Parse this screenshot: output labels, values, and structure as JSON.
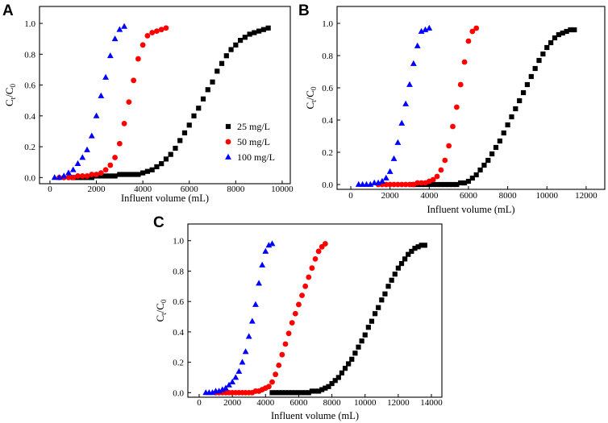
{
  "chart_data": [
    {
      "panel": "A",
      "type": "scatter",
      "xlabel": "Influent volume (mL)",
      "ylabel_parts": [
        {
          "t": "C"
        },
        {
          "t": "t",
          "sub": true
        },
        {
          "t": "/C"
        },
        {
          "t": "0",
          "sub": true
        }
      ],
      "xlim": [
        -450,
        10350
      ],
      "ylim": [
        -0.04,
        1.11
      ],
      "xticks": [
        0,
        2000,
        4000,
        6000,
        8000,
        10000
      ],
      "xtick_labels": [
        "0",
        "2000",
        "4000",
        "6000",
        "8000",
        "10000"
      ],
      "yticks": [
        0,
        0.2,
        0.4,
        0.6,
        0.8,
        1.0
      ],
      "ytick_labels": [
        "0.0",
        "0.2",
        "0.4",
        "0.6",
        "0.8",
        "1.0"
      ],
      "legend": {
        "show": true,
        "position": "center-right"
      },
      "series": [
        {
          "name": "25 mg/L",
          "marker": "square",
          "color": "#000000",
          "x": [
            1000,
            1200,
            1400,
            1600,
            1800,
            2000,
            2200,
            2400,
            2600,
            2800,
            3000,
            3200,
            3400,
            3600,
            3800,
            4000,
            4200,
            4400,
            4600,
            4800,
            5000,
            5200,
            5400,
            5600,
            5800,
            6000,
            6200,
            6400,
            6600,
            6800,
            7000,
            7200,
            7400,
            7600,
            7800,
            8000,
            8200,
            8400,
            8600,
            8800,
            9000,
            9200,
            9400
          ],
          "y": [
            0.0,
            0.0,
            0.0,
            0.0,
            0.0,
            0.01,
            0.01,
            0.01,
            0.01,
            0.01,
            0.02,
            0.02,
            0.02,
            0.02,
            0.02,
            0.03,
            0.04,
            0.05,
            0.07,
            0.09,
            0.12,
            0.15,
            0.19,
            0.24,
            0.29,
            0.34,
            0.4,
            0.45,
            0.51,
            0.57,
            0.62,
            0.69,
            0.74,
            0.79,
            0.83,
            0.86,
            0.89,
            0.91,
            0.93,
            0.94,
            0.95,
            0.96,
            0.97
          ]
        },
        {
          "name": "50 mg/L",
          "marker": "circle",
          "color": "#ff0000",
          "x": [
            400,
            600,
            800,
            1000,
            1200,
            1400,
            1600,
            1800,
            2000,
            2200,
            2400,
            2600,
            2800,
            3000,
            3200,
            3400,
            3600,
            3800,
            4000,
            4200,
            4400,
            4600,
            4800,
            5000
          ],
          "y": [
            0.0,
            0.0,
            0.0,
            0.0,
            0.01,
            0.01,
            0.01,
            0.02,
            0.02,
            0.03,
            0.05,
            0.08,
            0.13,
            0.22,
            0.35,
            0.49,
            0.63,
            0.77,
            0.86,
            0.92,
            0.94,
            0.95,
            0.96,
            0.97
          ]
        },
        {
          "name": "100 mg/L",
          "marker": "triangle",
          "color": "#0000ff",
          "x": [
            200,
            400,
            600,
            800,
            1000,
            1200,
            1400,
            1600,
            1800,
            2000,
            2200,
            2400,
            2600,
            2800,
            3000,
            3200
          ],
          "y": [
            0.0,
            0.0,
            0.01,
            0.03,
            0.05,
            0.09,
            0.13,
            0.18,
            0.27,
            0.4,
            0.53,
            0.65,
            0.79,
            0.9,
            0.96,
            0.98
          ]
        }
      ]
    },
    {
      "panel": "B",
      "type": "scatter",
      "xlabel": "Influent volume (mL)",
      "ylabel_parts": [
        {
          "t": "C"
        },
        {
          "t": "t",
          "sub": true
        },
        {
          "t": "/C"
        },
        {
          "t": "0",
          "sub": true
        }
      ],
      "xlim": [
        -700,
        12950
      ],
      "ylim": [
        -0.03,
        1.105
      ],
      "xticks": [
        0,
        2000,
        4000,
        6000,
        8000,
        10000,
        12000
      ],
      "xtick_labels": [
        "0",
        "2000",
        "4000",
        "6000",
        "8000",
        "10000",
        "12000"
      ],
      "yticks": [
        0,
        0.2,
        0.4,
        0.6,
        0.8,
        1.0
      ],
      "ytick_labels": [
        "0.0",
        "0.2",
        "0.4",
        "0.6",
        "0.8",
        "1.0"
      ],
      "legend": {
        "show": false
      },
      "series": [
        {
          "marker": "square",
          "color": "#000000",
          "x": [
            3200,
            3400,
            3600,
            3800,
            4000,
            4200,
            4400,
            4600,
            4800,
            5000,
            5200,
            5400,
            5600,
            5800,
            6000,
            6200,
            6400,
            6600,
            6800,
            7000,
            7200,
            7400,
            7600,
            7800,
            8000,
            8200,
            8400,
            8600,
            8800,
            9000,
            9200,
            9400,
            9600,
            9800,
            10000,
            10200,
            10400,
            10600,
            10800,
            11000,
            11200,
            11400
          ],
          "y": [
            0.0,
            0.0,
            0.0,
            0.0,
            0.0,
            0.0,
            0.0,
            0.0,
            0.0,
            0.0,
            0.0,
            0.0,
            0.01,
            0.01,
            0.02,
            0.04,
            0.06,
            0.09,
            0.12,
            0.15,
            0.19,
            0.23,
            0.27,
            0.32,
            0.37,
            0.42,
            0.47,
            0.52,
            0.57,
            0.62,
            0.67,
            0.72,
            0.77,
            0.81,
            0.85,
            0.88,
            0.91,
            0.93,
            0.94,
            0.95,
            0.96,
            0.96
          ]
        },
        {
          "marker": "circle",
          "color": "#ff0000",
          "x": [
            1400,
            1600,
            1800,
            2000,
            2200,
            2400,
            2600,
            2800,
            3000,
            3200,
            3400,
            3600,
            3800,
            4000,
            4200,
            4400,
            4600,
            4800,
            5000,
            5200,
            5400,
            5600,
            5800,
            6000,
            6200,
            6400
          ],
          "y": [
            0.0,
            0.0,
            0.0,
            0.0,
            0.0,
            0.0,
            0.0,
            0.0,
            0.0,
            0.0,
            0.01,
            0.01,
            0.01,
            0.02,
            0.03,
            0.05,
            0.09,
            0.15,
            0.24,
            0.36,
            0.48,
            0.62,
            0.76,
            0.89,
            0.95,
            0.97
          ]
        },
        {
          "marker": "triangle",
          "color": "#0000ff",
          "x": [
            400,
            600,
            800,
            1000,
            1200,
            1400,
            1600,
            1800,
            2000,
            2200,
            2400,
            2600,
            2800,
            3000,
            3200,
            3400,
            3600,
            3800,
            4000
          ],
          "y": [
            0.0,
            0.0,
            0.0,
            0.0,
            0.01,
            0.01,
            0.02,
            0.04,
            0.08,
            0.16,
            0.26,
            0.38,
            0.5,
            0.62,
            0.75,
            0.86,
            0.95,
            0.96,
            0.97
          ]
        }
      ]
    },
    {
      "panel": "C",
      "type": "scatter",
      "xlabel": "Influent volume (mL)",
      "ylabel_parts": [
        {
          "t": "C"
        },
        {
          "t": "t",
          "sub": true
        },
        {
          "t": "/C"
        },
        {
          "t": "0",
          "sub": true
        }
      ],
      "xlim": [
        -680,
        14630
      ],
      "ylim": [
        -0.03,
        1.11
      ],
      "xticks": [
        0,
        2000,
        4000,
        6000,
        8000,
        10000,
        12000,
        14000
      ],
      "xtick_labels": [
        "0",
        "2000",
        "4000",
        "6000",
        "8000",
        "10000",
        "12000",
        "14000"
      ],
      "yticks": [
        0,
        0.2,
        0.4,
        0.6,
        0.8,
        1.0
      ],
      "ytick_labels": [
        "0.0",
        "0.2",
        "0.4",
        "0.6",
        "0.8",
        "1.0"
      ],
      "legend": {
        "show": false
      },
      "series": [
        {
          "marker": "square",
          "color": "#000000",
          "x": [
            4400,
            4600,
            4800,
            5000,
            5200,
            5400,
            5600,
            5800,
            6000,
            6200,
            6400,
            6600,
            6800,
            7000,
            7200,
            7400,
            7600,
            7800,
            8000,
            8200,
            8400,
            8600,
            8800,
            9000,
            9200,
            9400,
            9600,
            9800,
            10000,
            10200,
            10400,
            10600,
            10800,
            11000,
            11200,
            11400,
            11600,
            11800,
            12000,
            12200,
            12400,
            12600,
            12800,
            13000,
            13200,
            13400,
            13600
          ],
          "y": [
            0.0,
            0.0,
            0.0,
            0.0,
            0.0,
            0.0,
            0.0,
            0.0,
            0.0,
            0.0,
            0.0,
            0.0,
            0.01,
            0.01,
            0.01,
            0.02,
            0.03,
            0.04,
            0.06,
            0.08,
            0.1,
            0.13,
            0.16,
            0.19,
            0.22,
            0.26,
            0.3,
            0.34,
            0.38,
            0.43,
            0.47,
            0.52,
            0.56,
            0.61,
            0.65,
            0.7,
            0.74,
            0.78,
            0.82,
            0.85,
            0.88,
            0.91,
            0.93,
            0.95,
            0.96,
            0.97,
            0.97
          ]
        },
        {
          "marker": "circle",
          "color": "#ff0000",
          "x": [
            1000,
            1200,
            1400,
            1600,
            1800,
            2000,
            2200,
            2400,
            2600,
            2800,
            3000,
            3200,
            3400,
            3600,
            3800,
            4000,
            4200,
            4400,
            4600,
            4800,
            5000,
            5200,
            5400,
            5600,
            5800,
            6000,
            6200,
            6400,
            6600,
            6800,
            7000,
            7200,
            7400,
            7600
          ],
          "y": [
            0.0,
            0.0,
            0.0,
            0.0,
            0.0,
            0.0,
            0.0,
            0.0,
            0.0,
            0.0,
            0.0,
            0.0,
            0.01,
            0.01,
            0.02,
            0.03,
            0.04,
            0.07,
            0.12,
            0.18,
            0.25,
            0.32,
            0.39,
            0.46,
            0.52,
            0.58,
            0.64,
            0.7,
            0.76,
            0.82,
            0.88,
            0.93,
            0.96,
            0.98
          ]
        },
        {
          "marker": "triangle",
          "color": "#0000ff",
          "x": [
            400,
            600,
            800,
            1000,
            1200,
            1400,
            1600,
            1800,
            2000,
            2200,
            2400,
            2600,
            2800,
            3000,
            3200,
            3400,
            3600,
            3800,
            4000,
            4200,
            4400
          ],
          "y": [
            0.0,
            0.0,
            0.0,
            0.01,
            0.01,
            0.02,
            0.03,
            0.05,
            0.07,
            0.1,
            0.14,
            0.2,
            0.27,
            0.37,
            0.47,
            0.58,
            0.72,
            0.84,
            0.93,
            0.97,
            0.98
          ]
        }
      ]
    }
  ]
}
